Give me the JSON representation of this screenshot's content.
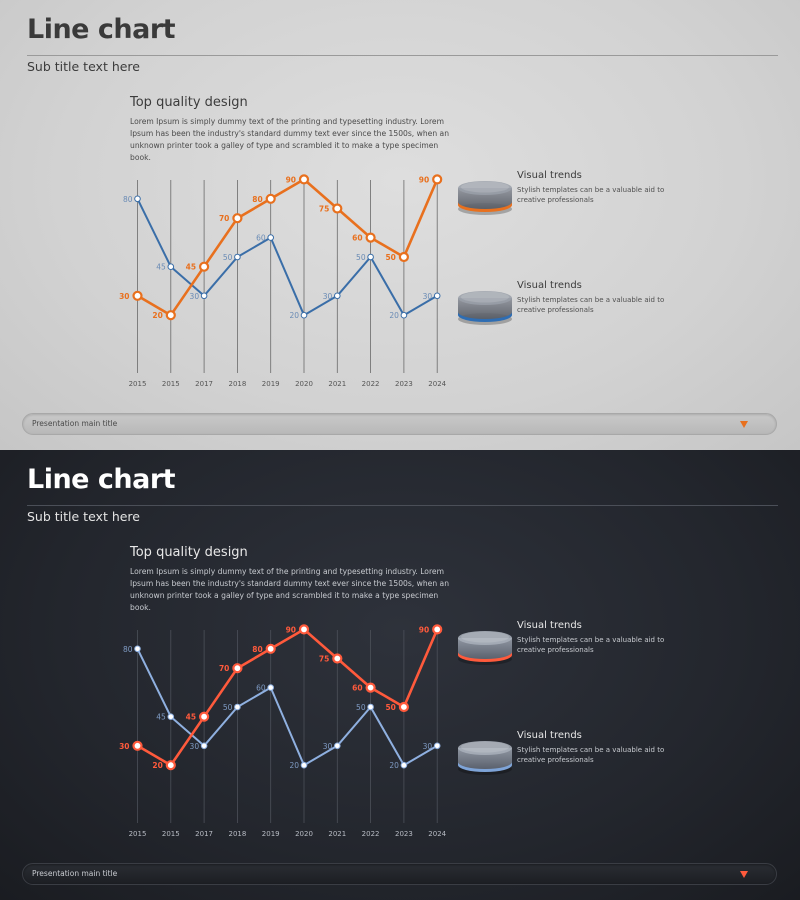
{
  "slides": [
    {
      "theme": "light",
      "title": "Line chart",
      "subtitle": "Sub title text here",
      "heading": "Top quality design",
      "body": "Lorem Ipsum is simply dummy text of the printing and typesetting industry. Lorem Ipsum has been the industry's standard dummy text ever since the 1500s, when an unknown printer took a galley of type and scrambled it to make a type specimen book.",
      "legend": [
        {
          "title": "Visual trends",
          "description": "Stylish templates can be a valuable aid to creative professionals",
          "color": "#e8701e"
        },
        {
          "title": "Visual trends",
          "description": "Stylish templates can be a valuable aid to creative professionals",
          "color": "#2e6db3"
        }
      ],
      "footer": {
        "label": "Presentation main title",
        "icon": "caret-down-icon"
      },
      "colors": {
        "series_a": "#e8701e",
        "series_b": "#3a6ea8",
        "grid": "#6a6a6a",
        "axis_text": "#555555",
        "label_b": "#6a8bb5"
      }
    },
    {
      "theme": "dark",
      "title": "Line chart",
      "subtitle": "Sub title text here",
      "heading": "Top quality design",
      "body": "Lorem Ipsum is simply dummy text of the printing and typesetting industry. Lorem Ipsum has been the industry's standard dummy text ever since the 1500s, when an unknown printer took a galley of type and scrambled it to make a type specimen book.",
      "legend": [
        {
          "title": "Visual trends",
          "description": "Stylish templates can be a valuable aid to creative professionals",
          "color": "#ff5a3c"
        },
        {
          "title": "Visual trends",
          "description": "Stylish templates can be a valuable aid to creative professionals",
          "color": "#7ea4d8"
        }
      ],
      "footer": {
        "label": "Presentation main title",
        "icon": "caret-down-icon"
      },
      "colors": {
        "series_a": "#ff5a3c",
        "series_b": "#8fb0e0",
        "grid": "#4c5059",
        "axis_text": "#b8bcc4",
        "label_b": "#7f9bc4"
      }
    }
  ],
  "chart_data": {
    "type": "line",
    "categories": [
      "2015",
      "2015",
      "2017",
      "2018",
      "2019",
      "2020",
      "2021",
      "2022",
      "2023",
      "2024"
    ],
    "series": [
      {
        "values": [
          30,
          20,
          45,
          70,
          80,
          90,
          75,
          60,
          50,
          90
        ]
      },
      {
        "values": [
          80,
          45,
          30,
          50,
          60,
          20,
          30,
          50,
          20,
          30
        ]
      }
    ],
    "ylim": [
      0,
      100
    ],
    "grid": "vertical",
    "data_labels": true
  }
}
